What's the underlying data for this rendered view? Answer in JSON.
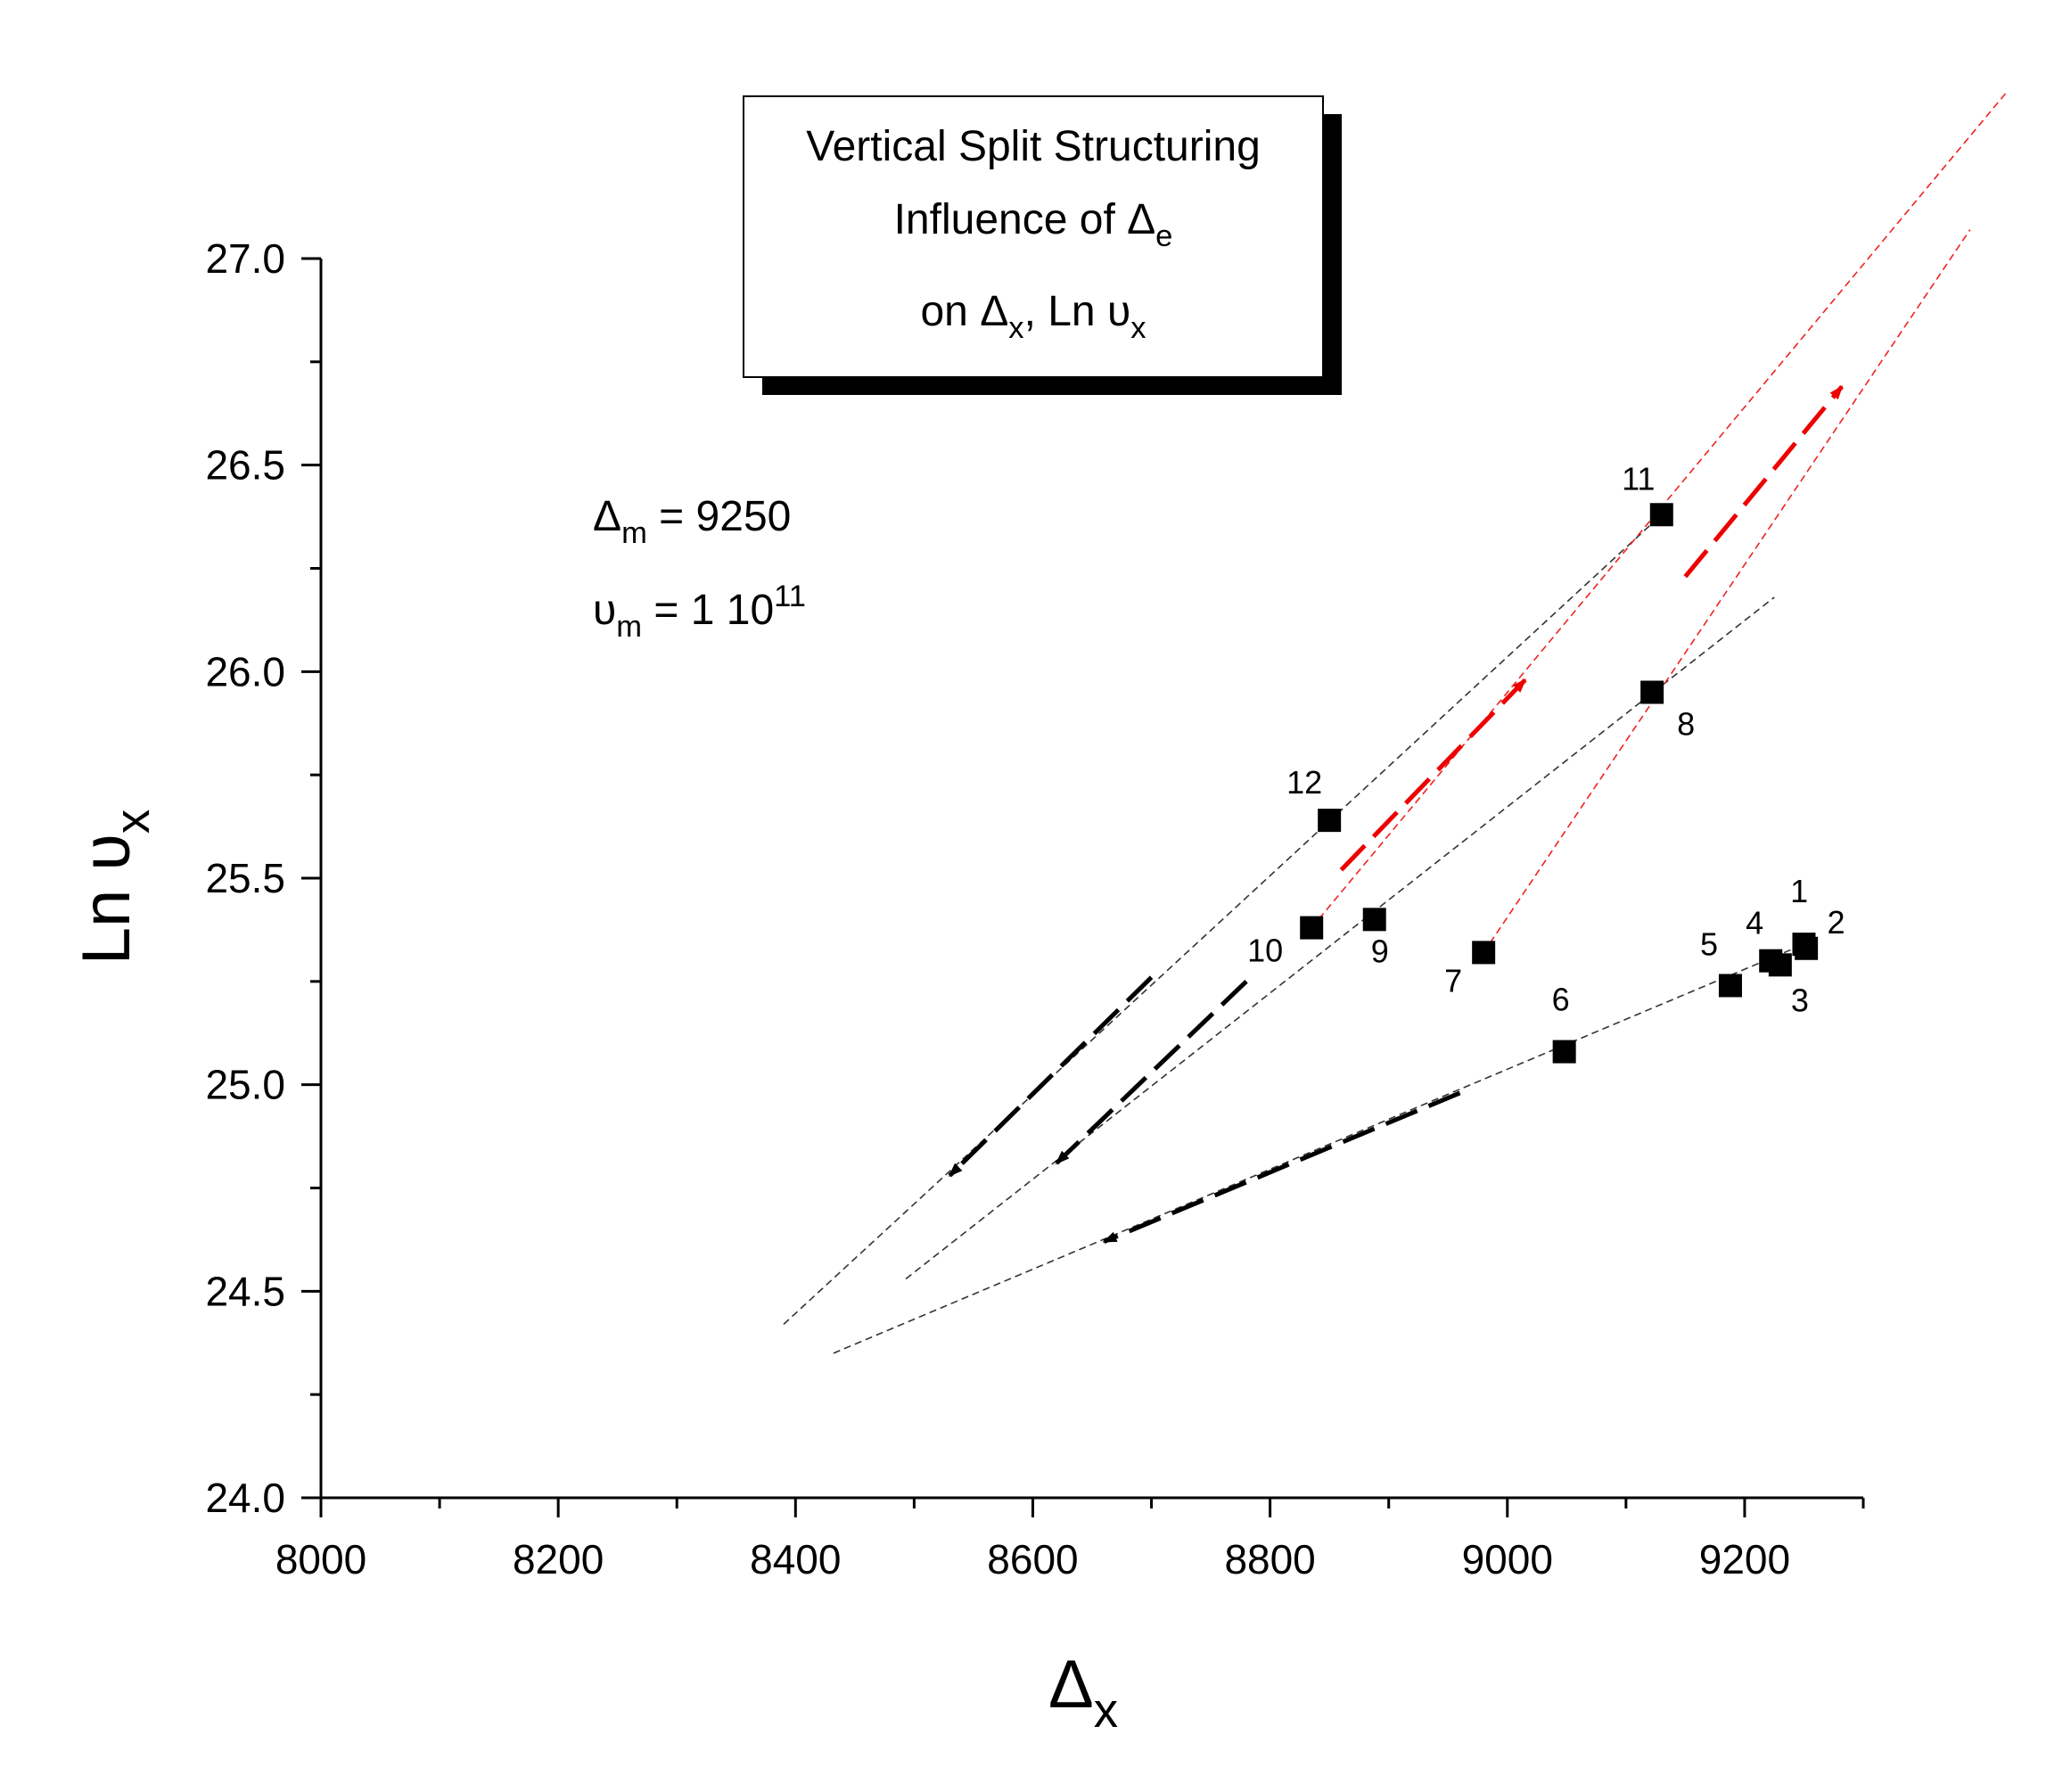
{
  "chart_data": {
    "type": "scatter",
    "title": {
      "line1": "Vertical Split Structuring",
      "line2_prefix": "Influence of Δ",
      "line2_sub": "e",
      "line3_prefix": "on Δ",
      "line3_sub1": "x",
      "line3_mid": ", Ln υ",
      "line3_sub2": "x"
    },
    "xlabel": {
      "main": "Δ",
      "sub": "x"
    },
    "ylabel": {
      "main": "Ln υ",
      "sub": "x"
    },
    "xlim": [
      8000,
      9300
    ],
    "ylim": [
      24.0,
      27.0
    ],
    "xticks": [
      8000,
      8200,
      8400,
      8600,
      8800,
      9000,
      9200
    ],
    "xtick_labels": [
      "8000",
      "8200",
      "8400",
      "8600",
      "8800",
      "9000",
      "9200"
    ],
    "yticks": [
      24.0,
      24.5,
      25.0,
      25.5,
      26.0,
      26.5,
      27.0
    ],
    "ytick_labels": [
      "24.0",
      "24.5",
      "25.0",
      "25.5",
      "26.0",
      "26.5",
      "27.0"
    ],
    "params": [
      {
        "prefix": "Δ",
        "sub": "m",
        "suffix": " = 9250"
      },
      {
        "prefix": "υ",
        "sub": "m",
        "suffix": " = 1 10",
        "sup": "11"
      }
    ],
    "points": [
      {
        "label": "1",
        "x": 9252,
        "y": 25.33
      },
      {
        "label": "2",
        "x": 9250,
        "y": 25.34
      },
      {
        "label": "3",
        "x": 9230,
        "y": 25.29
      },
      {
        "label": "4",
        "x": 9222,
        "y": 25.3
      },
      {
        "label": "5",
        "x": 9188,
        "y": 25.24
      },
      {
        "label": "6",
        "x": 9048,
        "y": 25.08
      },
      {
        "label": "7",
        "x": 8980,
        "y": 25.32
      },
      {
        "label": "8",
        "x": 9122,
        "y": 25.95
      },
      {
        "label": "9",
        "x": 8888,
        "y": 25.4
      },
      {
        "label": "10",
        "x": 8835,
        "y": 25.38
      },
      {
        "label": "11",
        "x": 9130,
        "y": 26.38
      },
      {
        "label": "12",
        "x": 8850,
        "y": 25.64
      }
    ],
    "trend_lines": [
      {
        "name": "black-trend-upper",
        "color": "#333333",
        "x1": 8390,
        "y1": 24.42,
        "x2": 9130,
        "y2": 26.38
      },
      {
        "name": "black-trend-middle",
        "color": "#333333",
        "x1": 8493,
        "y1": 24.53,
        "x2": 9225,
        "y2": 26.18
      },
      {
        "name": "black-trend-lower",
        "color": "#333333",
        "x1": 8432,
        "y1": 24.35,
        "x2": 9250,
        "y2": 25.34
      },
      {
        "name": "red-trend-left",
        "color": "#ee2222",
        "x1": 8835,
        "y1": 25.38,
        "x2": 9420,
        "y2": 27.4
      },
      {
        "name": "red-trend-right",
        "color": "#ee2222",
        "x1": 8980,
        "y1": 25.32,
        "x2": 9390,
        "y2": 27.07
      }
    ],
    "arrows": [
      {
        "name": "black-arrow-upper",
        "color": "#000000",
        "x1": 8700,
        "y1": 25.26,
        "x2": 8530,
        "y2": 24.78
      },
      {
        "name": "black-arrow-middle",
        "color": "#000000",
        "x1": 8780,
        "y1": 25.25,
        "x2": 8620,
        "y2": 24.81
      },
      {
        "name": "black-arrow-lower",
        "color": "#000000",
        "x1": 8960,
        "y1": 24.98,
        "x2": 8660,
        "y2": 24.62
      },
      {
        "name": "red-arrow-left",
        "color": "#ee0000",
        "x1": 8860,
        "y1": 25.52,
        "x2": 9015,
        "y2": 25.98
      },
      {
        "name": "red-arrow-right",
        "color": "#ee0000",
        "x1": 9150,
        "y1": 26.23,
        "x2": 9282,
        "y2": 26.69
      }
    ]
  }
}
